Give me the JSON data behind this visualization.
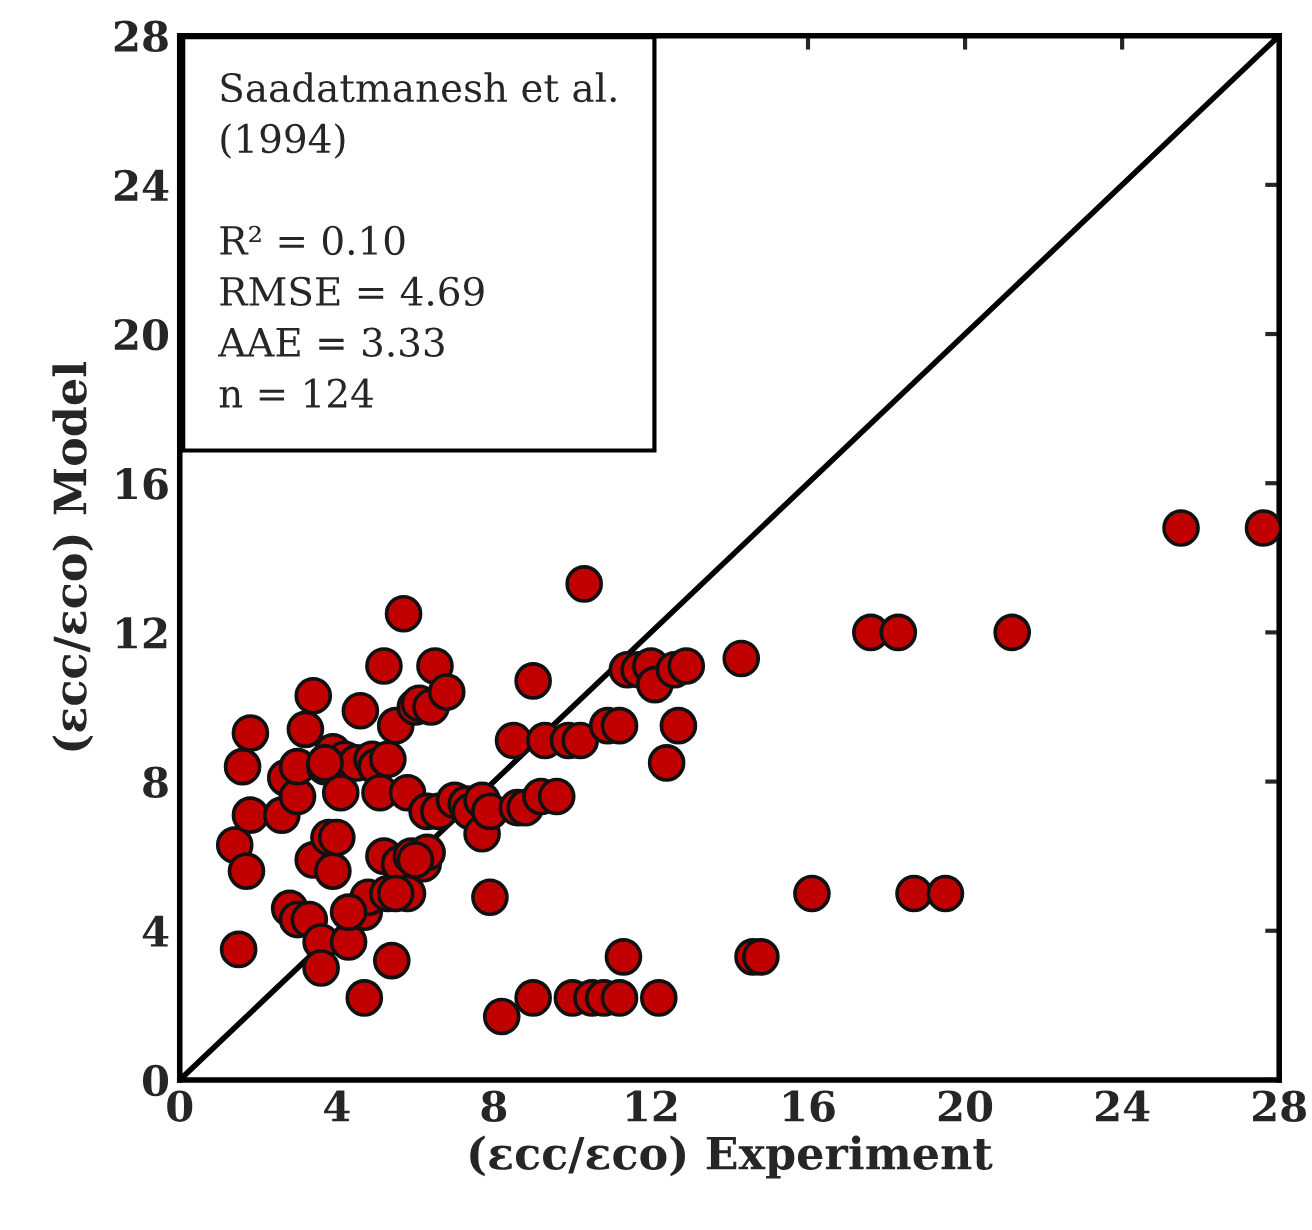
{
  "chart_data": {
    "type": "scatter",
    "xlabel": "(εcc/εco) Experiment",
    "ylabel": "(εcc/εco) Model",
    "xlim": [
      0,
      28
    ],
    "ylim": [
      0,
      28
    ],
    "xticks": [
      0,
      4,
      8,
      12,
      16,
      20,
      24,
      28
    ],
    "yticks": [
      0,
      4,
      8,
      12,
      16,
      20,
      24,
      28
    ],
    "grid": false,
    "marker": "circle",
    "annotations": [
      "Saadatmanesh et al.\n(1994)\n\nR² = 0.10\nRMSE = 4.69\nAAE = 3.33\nn = 124"
    ],
    "series": [
      {
        "color": "#c00000",
        "x": [
          1.4,
          1.5,
          1.6,
          1.7,
          1.8,
          1.8,
          2.6,
          2.7,
          2.8,
          3.0,
          3.0,
          3.0,
          3.2,
          3.3,
          3.4,
          3.4,
          3.6,
          3.6,
          3.7,
          3.8,
          3.9,
          3.9,
          4.0,
          4.1,
          4.2,
          4.3,
          4.5,
          4.6,
          4.7,
          4.7,
          4.8,
          4.9,
          5.0,
          5.1,
          5.2,
          5.2,
          5.3,
          5.3,
          5.4,
          5.5,
          5.6,
          5.7,
          5.8,
          5.8,
          5.9,
          6.0,
          6.1,
          6.2,
          6.3,
          6.3,
          6.4,
          6.5,
          6.6,
          6.8,
          7.0,
          7.3,
          7.4,
          7.7,
          7.7,
          7.9,
          7.9,
          8.2,
          8.5,
          8.6,
          8.8,
          9.0,
          9.0,
          9.2,
          9.3,
          9.6,
          9.9,
          10.0,
          10.2,
          10.3,
          10.5,
          10.8,
          10.9,
          11.2,
          11.2,
          11.3,
          11.4,
          11.7,
          12.0,
          12.1,
          12.2,
          12.4,
          12.6,
          12.7,
          12.9,
          14.3,
          14.6,
          14.8,
          16.1,
          17.6,
          18.3,
          18.7,
          19.5,
          21.2,
          25.5,
          27.6,
          5.5,
          6.0,
          4.3,
          3.7
        ],
        "values": [
          6.3,
          3.5,
          8.4,
          5.6,
          9.3,
          7.1,
          7.1,
          8.1,
          4.6,
          7.6,
          8.4,
          4.3,
          9.4,
          4.3,
          10.3,
          5.9,
          3.7,
          3.0,
          8.4,
          6.5,
          8.8,
          5.6,
          6.5,
          7.7,
          8.6,
          3.7,
          8.5,
          9.9,
          2.2,
          4.5,
          4.9,
          8.6,
          8.4,
          7.7,
          11.1,
          6.0,
          5.0,
          8.6,
          3.2,
          9.5,
          5.8,
          12.5,
          7.7,
          5.0,
          6.0,
          10.0,
          10.1,
          5.8,
          7.2,
          6.1,
          10.0,
          11.1,
          7.2,
          10.4,
          7.5,
          7.4,
          7.2,
          7.5,
          6.6,
          7.2,
          4.9,
          1.7,
          9.1,
          7.3,
          7.3,
          10.7,
          2.2,
          7.6,
          9.1,
          7.6,
          9.1,
          2.2,
          9.1,
          13.3,
          2.2,
          2.2,
          9.5,
          2.2,
          9.5,
          3.3,
          11.0,
          11.0,
          11.1,
          10.6,
          2.2,
          8.5,
          11.0,
          9.5,
          11.1,
          11.3,
          3.3,
          3.3,
          5.0,
          12.0,
          12.0,
          5.0,
          5.0,
          12.0,
          14.8,
          14.8,
          5.0,
          5.9,
          4.5,
          8.5
        ]
      },
      {
        "type": "line",
        "color": "#000000",
        "x": [
          0,
          28
        ],
        "values": [
          0,
          28
        ],
        "marker": "none"
      }
    ]
  }
}
